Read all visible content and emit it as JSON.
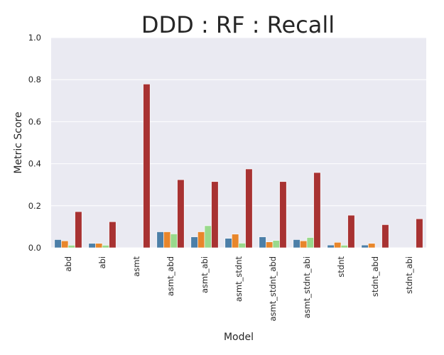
{
  "chart_data": {
    "type": "bar",
    "title": "DDD : RF : Recall",
    "xlabel": "Model",
    "ylabel": "Metric Score",
    "ylim": [
      0,
      1.0
    ],
    "yticks": [
      "0.0",
      "0.2",
      "0.4",
      "0.6",
      "0.8",
      "1.0"
    ],
    "grid": true,
    "legend": "none",
    "background": "#eaeaf2",
    "categories": [
      "abd",
      "abi",
      "asmt",
      "asmt_abd",
      "asmt_abi",
      "asmt_stdnt",
      "asmt_stdnt_abd",
      "asmt_stdnt_abi",
      "stdnt",
      "stdnt_abd",
      "stdnt_abi"
    ],
    "series": [
      {
        "color": "#4c7fa8",
        "values": [
          0.039,
          0.021,
          0.0,
          0.076,
          0.052,
          0.045,
          0.052,
          0.039,
          0.013,
          0.013,
          0.0
        ]
      },
      {
        "color": "#e8862b",
        "values": [
          0.033,
          0.021,
          0.0,
          0.076,
          0.076,
          0.065,
          0.028,
          0.033,
          0.026,
          0.021,
          0.0
        ]
      },
      {
        "color": "#99d98c",
        "values": [
          0.012,
          0.012,
          0.0,
          0.066,
          0.105,
          0.022,
          0.035,
          0.049,
          0.012,
          0.0,
          0.0
        ]
      },
      {
        "color": "#a83232",
        "values": [
          0.172,
          0.124,
          0.779,
          0.324,
          0.315,
          0.375,
          0.315,
          0.358,
          0.155,
          0.11,
          0.138
        ]
      }
    ]
  }
}
